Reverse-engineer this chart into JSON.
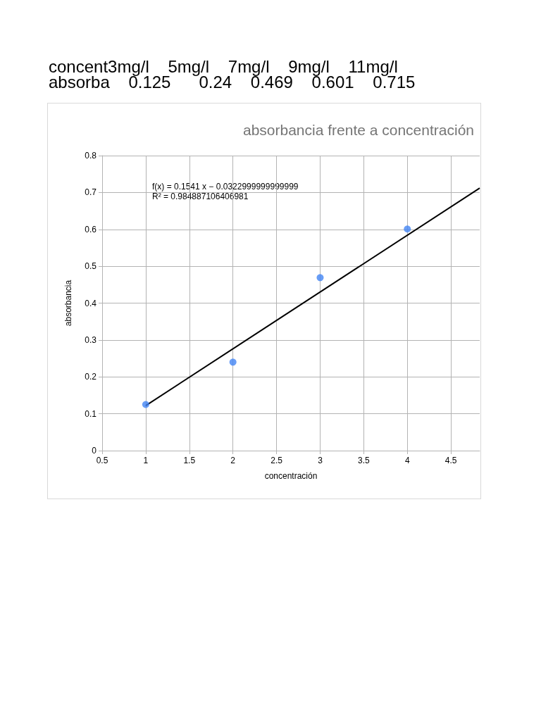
{
  "chart_data": {
    "type": "scatter",
    "title": "absorbancia frente a concentración",
    "xlabel": "concentración",
    "ylabel": "absorbancia",
    "annotations": [
      "concent3mg/l    5mg/l    7mg/l    9mg/l    11mg/l",
      "absorba    0.125      0.24    0.469    0.601    0.715",
      "f(x) = 0.1541 x − 0.0322999999999999",
      "R² = 0.984887106406981"
    ],
    "series": [
      {
        "color": "#4285f4",
        "x": [
          1,
          2,
          3,
          4
        ],
        "values": [
          0.125,
          0.24,
          0.469,
          0.601
        ]
      },
      {
        "type": "line",
        "color": "#000000",
        "marker": "none",
        "x": [
          1,
          4.83
        ],
        "values": [
          0.122,
          0.712
        ]
      }
    ],
    "xlim": [
      0.5,
      4.83
    ],
    "xticks": [
      0.5,
      1,
      1.5,
      2,
      2.5,
      3,
      3.5,
      4,
      4.5
    ],
    "ylim": [
      0,
      0.8
    ],
    "yticks": [
      0,
      0.1,
      0.2,
      0.3,
      0.4,
      0.5,
      0.6,
      0.7,
      0.8
    ],
    "grid": true,
    "marker": "circle"
  }
}
